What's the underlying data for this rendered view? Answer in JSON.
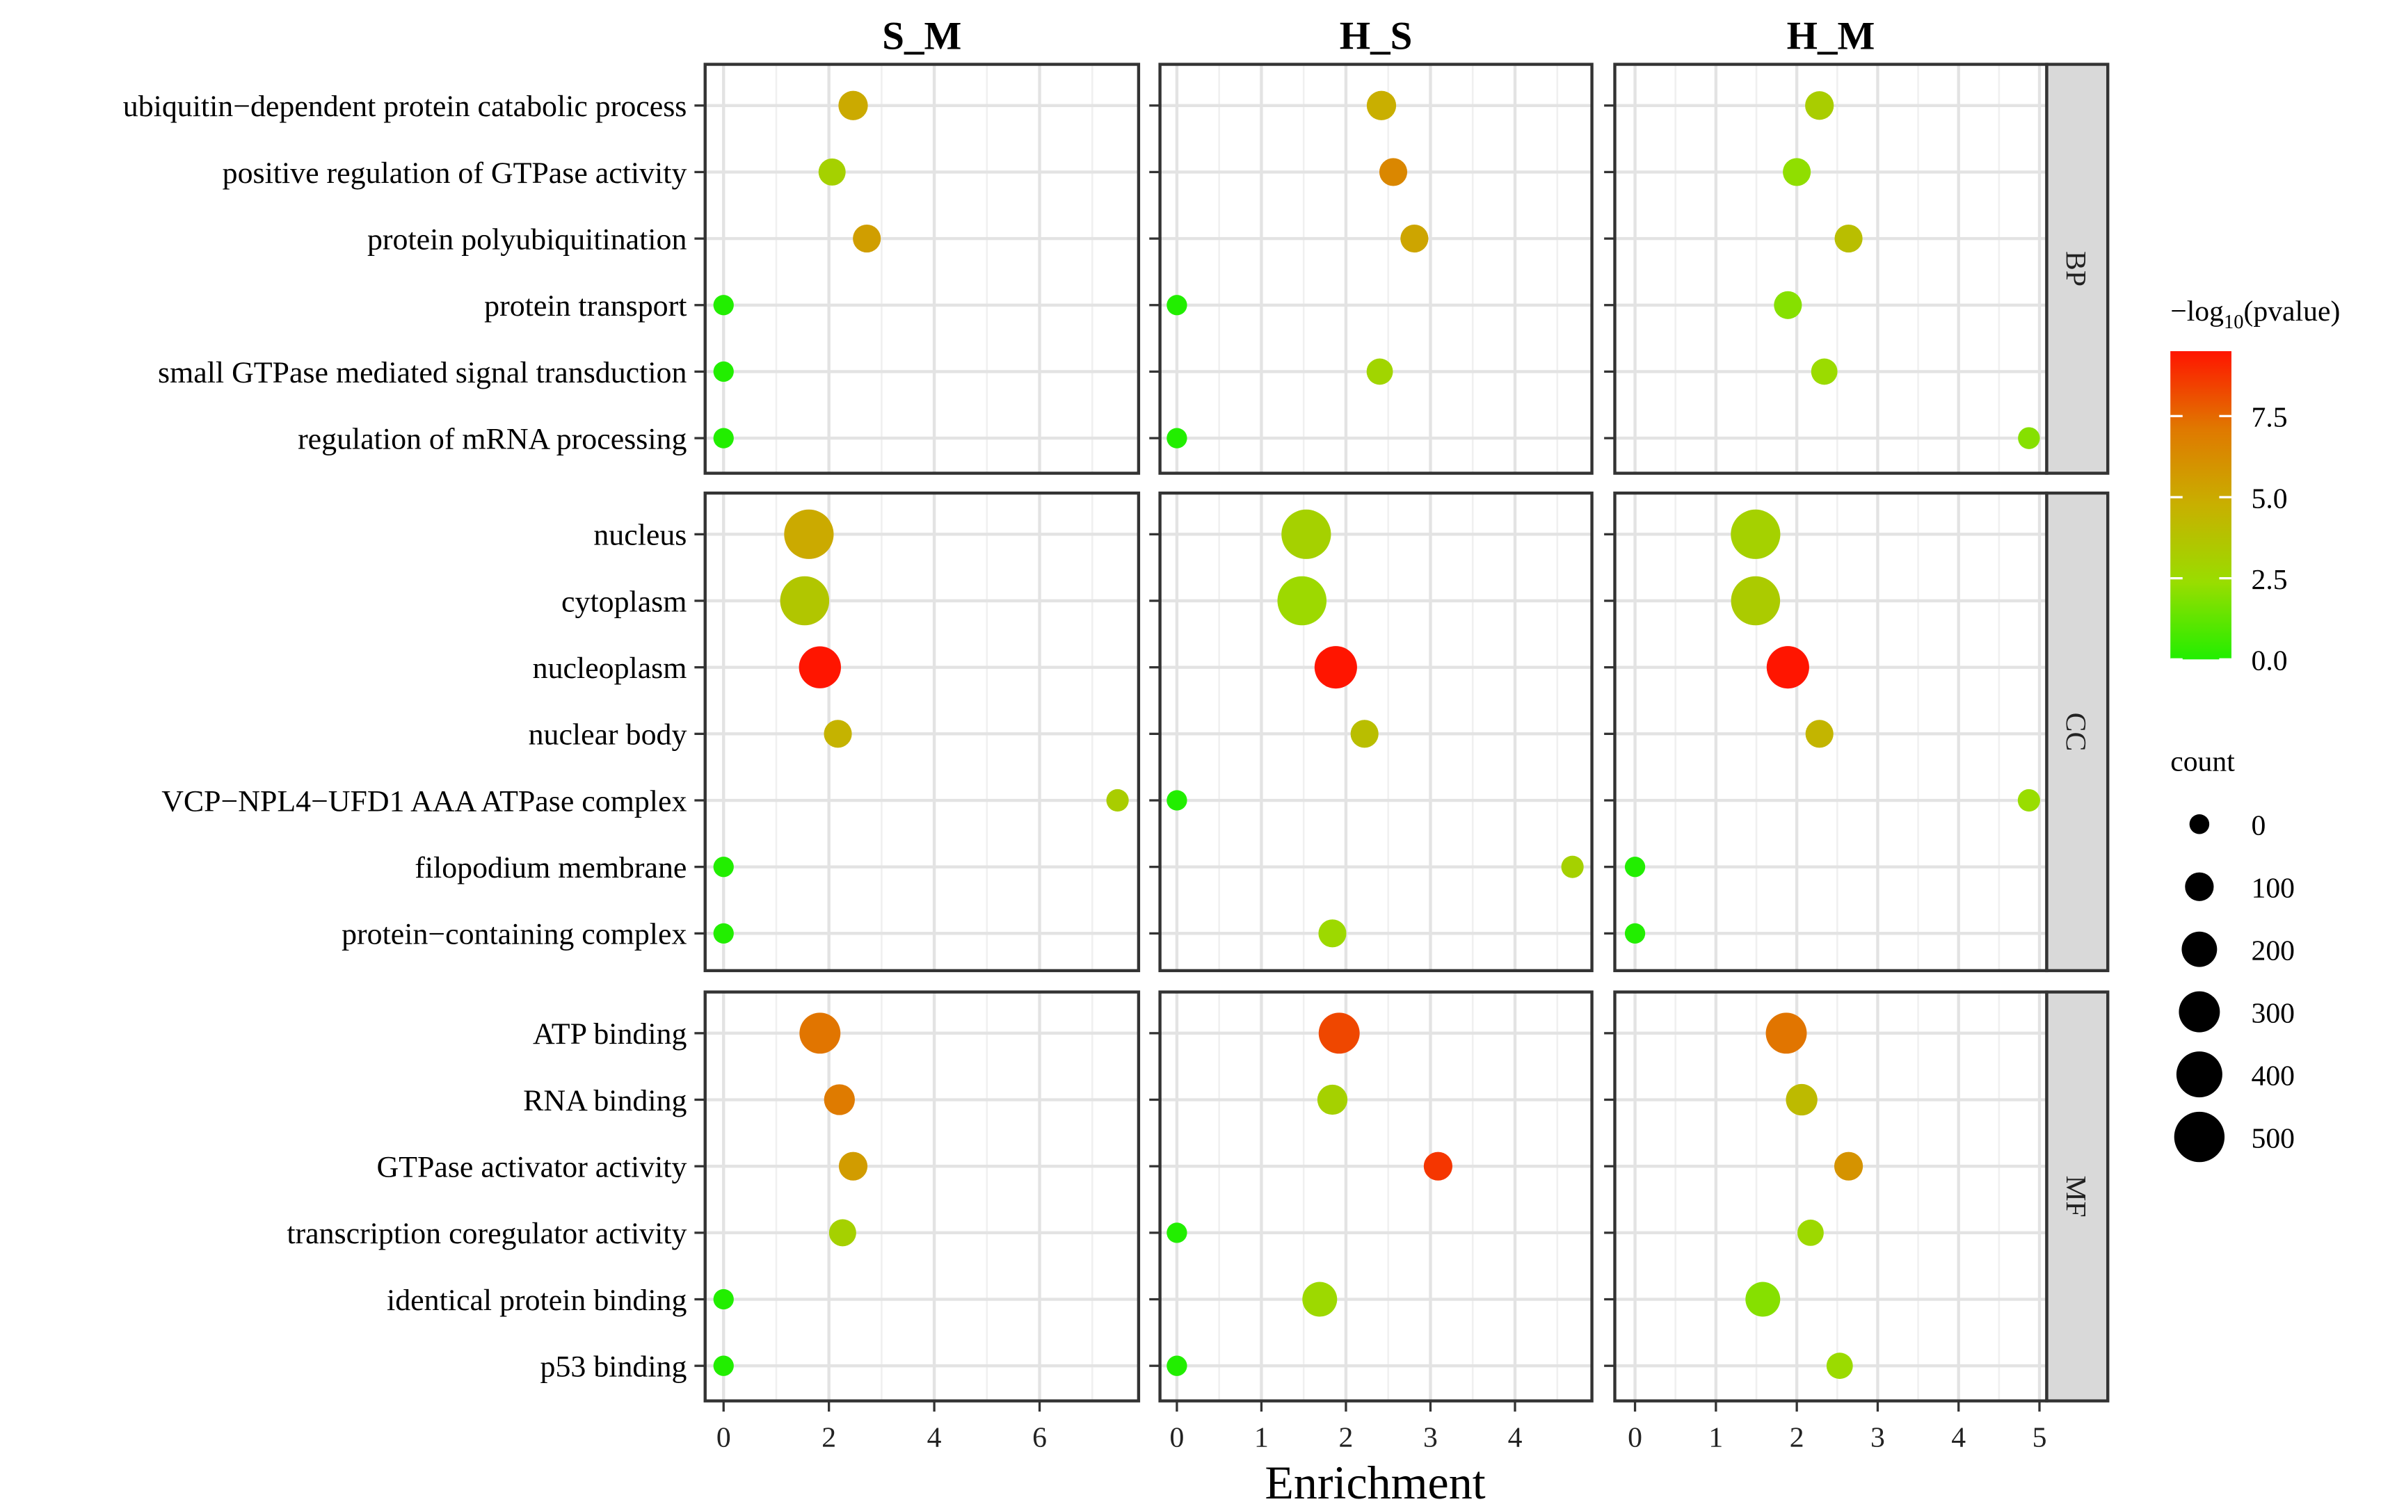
{
  "chart_data": {
    "type": "scatter",
    "title": "",
    "xlabel": "Enrichment",
    "ylabel": "",
    "facets": [
      {
        "name": "S_M",
        "xlim": [
          -0.35,
          7.88
        ],
        "ticks": [
          0,
          2,
          4,
          6
        ]
      },
      {
        "name": "H_S",
        "xlim": [
          -0.2,
          4.91
        ],
        "ticks": [
          0,
          1,
          2,
          3,
          4
        ]
      },
      {
        "name": "H_M",
        "xlim": [
          -0.25,
          5.09
        ],
        "ticks": [
          0,
          1,
          2,
          3,
          4,
          5
        ]
      }
    ],
    "point_fields": [
      "enrichment",
      "neg_log10_pvalue",
      "count"
    ],
    "groups": [
      {
        "name": "BP",
        "terms": [
          "ubiquitin−dependent protein catabolic process",
          "positive regulation of GTPase activity",
          "protein polyubiquitination",
          "protein transport",
          "small GTPase mediated signal transduction",
          "regulation of mRNA processing"
        ],
        "points": [
          [
            [
              2.46,
              5.0,
              110
            ],
            [
              2.06,
              3.0,
              80
            ],
            [
              2.72,
              5.5,
              90
            ],
            [
              0,
              0,
              5
            ],
            [
              0,
              0,
              5
            ],
            [
              0,
              0,
              5
            ]
          ],
          [
            [
              2.42,
              4.8,
              110
            ],
            [
              2.56,
              6.5,
              90
            ],
            [
              2.81,
              5.2,
              90
            ],
            [
              0,
              0,
              5
            ],
            [
              2.4,
              2.8,
              70
            ],
            [
              0,
              0,
              5
            ]
          ],
          [
            [
              2.28,
              3.2,
              100
            ],
            [
              2.0,
              2.2,
              90
            ],
            [
              2.64,
              4.0,
              90
            ],
            [
              1.89,
              2.0,
              90
            ],
            [
              2.34,
              2.5,
              70
            ],
            [
              4.87,
              2.0,
              20
            ]
          ]
        ]
      },
      {
        "name": "CC",
        "terms": [
          "nucleus",
          "cytoplasm",
          "nucleoplasm",
          "nuclear body",
          "VCP−NPL4−UFD1 AAA ATPase complex",
          "filopodium membrane",
          "protein−containing complex"
        ],
        "points": [
          [
            [
              1.62,
              5.0,
              480
            ],
            [
              1.54,
              3.6,
              470
            ],
            [
              1.83,
              9.5,
              320
            ],
            [
              2.17,
              4.6,
              90
            ],
            [
              7.48,
              3.2,
              25
            ],
            [
              0,
              0,
              5
            ],
            [
              0,
              0,
              5
            ]
          ],
          [
            [
              1.53,
              3.0,
              480
            ],
            [
              1.48,
              2.6,
              470
            ],
            [
              1.88,
              9.5,
              330
            ],
            [
              2.22,
              4.0,
              90
            ],
            [
              0,
              0,
              5
            ],
            [
              4.68,
              3.0,
              25
            ],
            [
              1.84,
              2.6,
              90
            ]
          ],
          [
            [
              1.49,
              3.0,
              480
            ],
            [
              1.49,
              3.3,
              470
            ],
            [
              1.89,
              9.5,
              330
            ],
            [
              2.28,
              4.5,
              90
            ],
            [
              4.87,
              2.4,
              25
            ],
            [
              0,
              0,
              5
            ],
            [
              0,
              0,
              5
            ]
          ]
        ]
      },
      {
        "name": "MF",
        "terms": [
          "ATP binding",
          "RNA binding",
          "GTPase activator activity",
          "transcription coregulator activity",
          "identical protein binding",
          "p53 binding"
        ],
        "points": [
          [
            [
              1.83,
              7.2,
              300
            ],
            [
              2.2,
              7.0,
              130
            ],
            [
              2.46,
              5.6,
              100
            ],
            [
              2.26,
              3.0,
              80
            ],
            [
              0,
              0,
              5
            ],
            [
              0,
              0,
              5
            ]
          ],
          [
            [
              1.92,
              8.3,
              300
            ],
            [
              1.84,
              3.0,
              120
            ],
            [
              3.09,
              8.7,
              100
            ],
            [
              0,
              0,
              5
            ],
            [
              1.69,
              2.6,
              190
            ],
            [
              0,
              0,
              5
            ]
          ],
          [
            [
              1.87,
              7.2,
              300
            ],
            [
              2.06,
              4.2,
              140
            ],
            [
              2.64,
              6.0,
              100
            ],
            [
              2.17,
              2.6,
              70
            ],
            [
              1.58,
              2.0,
              190
            ],
            [
              2.53,
              2.5,
              70
            ]
          ]
        ]
      }
    ],
    "color_legend": {
      "title_prefix": "−log",
      "title_sub": "10",
      "title_suffix": "(pvalue)",
      "range": [
        0,
        9.5
      ],
      "ticks": [
        "0.0",
        "2.5",
        "5.0",
        "7.5"
      ],
      "colors": [
        "#22ee00",
        "#99dd00",
        "#c8b000",
        "#e07800",
        "#ff1500"
      ]
    },
    "size_legend": {
      "title": "count",
      "values": [
        0,
        100,
        200,
        300,
        400,
        500
      ]
    }
  }
}
